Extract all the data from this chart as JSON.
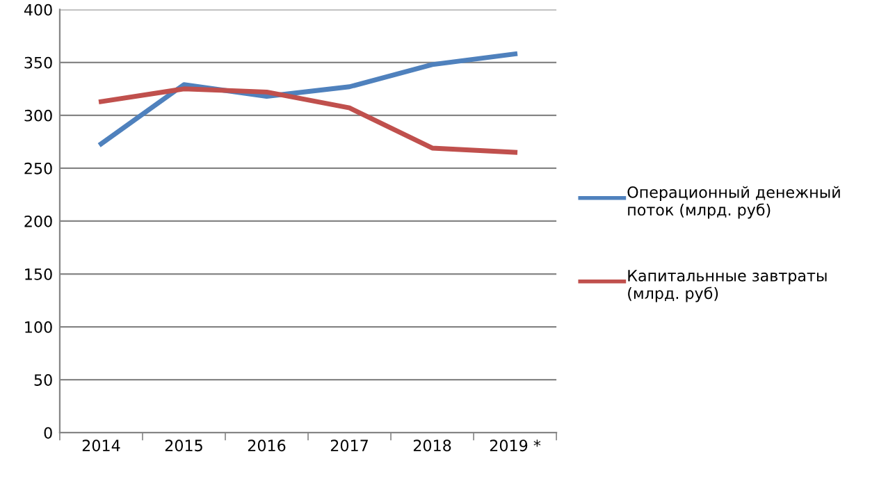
{
  "chart_data": {
    "type": "line",
    "categories": [
      "2014",
      "2015",
      "2016",
      "2017",
      "2018",
      "2019 *"
    ],
    "series": [
      {
        "name": "Операционный денежный поток (млрд. руб)",
        "color": "#4f81bd",
        "values": [
          273,
          329,
          318,
          327,
          348,
          358
        ]
      },
      {
        "name": "Капитальнные завтраты (млрд. руб)",
        "color": "#c0504d",
        "values": [
          313,
          325,
          322,
          307,
          269,
          265
        ]
      }
    ],
    "ylim": [
      0,
      400
    ],
    "yticks": [
      0,
      50,
      100,
      150,
      200,
      250,
      300,
      350,
      400
    ],
    "grid": "y",
    "legend": "right",
    "marker": "none",
    "line_style": "solid"
  }
}
